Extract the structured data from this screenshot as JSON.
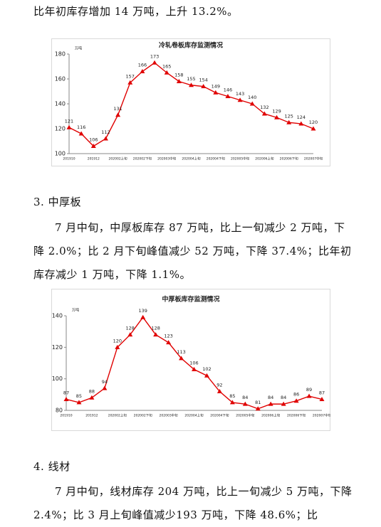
{
  "paragraphs": [
    "比年初库存增加 14 万吨，上升 13.2%。",
    "3. 中厚板",
    "7 月中旬，中厚板库存 87 万吨，比上一旬减少 2 万吨，下降 2.0%；比 2 月下旬峰值减少 52 万吨，下降 37.4%；比年初库存减少 1 万吨，下降 1.1%。",
    "4. 线材",
    "7 月中旬，线材库存 204 万吨，比上一旬减少 5 万吨，下降 2.4%；比 3 月上旬峰值减少193 万吨，下降 48.6%；比"
  ],
  "chart_data": [
    {
      "type": "line",
      "title": "冷轧卷板库存监测情况",
      "unit_label": "万吨",
      "categories": [
        "201910",
        null,
        "201912",
        null,
        "202002上旬",
        null,
        "202002下旬",
        null,
        "202003中旬",
        null,
        "202004上旬",
        null,
        "202004下旬",
        null,
        "202005中旬",
        null,
        "202006上旬",
        null,
        "202006下旬",
        null,
        "202007中旬"
      ],
      "series": [
        {
          "name": "冷轧卷板",
          "color": "#e00000",
          "values": [
            121,
            116,
            106,
            112,
            131,
            157,
            166,
            173,
            165,
            158,
            155,
            154,
            149,
            146,
            143,
            140,
            132,
            129,
            125,
            124,
            120
          ]
        }
      ],
      "ylim": [
        100,
        180
      ],
      "yticks": [
        100,
        120,
        140,
        160,
        180
      ]
    },
    {
      "type": "line",
      "title": "中厚板库存监测情况",
      "unit_label": "万吨",
      "categories": [
        "201910",
        null,
        "201912",
        null,
        "202002上旬",
        null,
        "202002下旬",
        null,
        "202003中旬",
        null,
        "202004上旬",
        null,
        "202004下旬",
        null,
        "202005中旬",
        null,
        "202006上旬",
        null,
        "202006下旬",
        null,
        "202007中旬"
      ],
      "series": [
        {
          "name": "中厚板",
          "color": "#e00000",
          "values": [
            87,
            85,
            88,
            94,
            120,
            128,
            139,
            128,
            123,
            113,
            106,
            102,
            92,
            85,
            84,
            81,
            84,
            84,
            86,
            89,
            87
          ]
        }
      ],
      "ylim": [
        80,
        140
      ],
      "yticks": [
        80,
        100,
        120,
        140
      ]
    }
  ]
}
